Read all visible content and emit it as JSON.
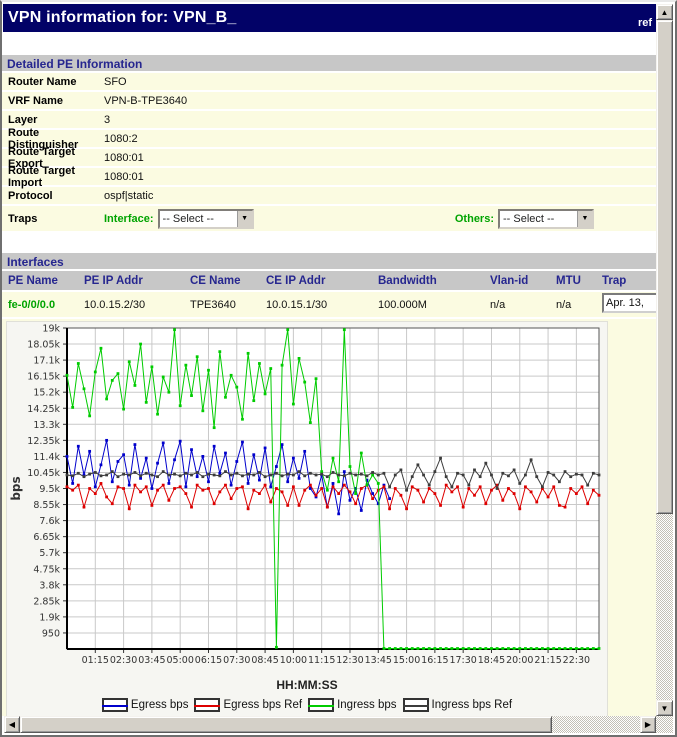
{
  "window": {
    "title": "VPN information for: VPN_B_",
    "title_right": "ref"
  },
  "detailed_pe": {
    "section_title": "Detailed PE Information",
    "rows": [
      {
        "label": "Router Name",
        "value": "SFO"
      },
      {
        "label": "VRF Name",
        "value": "VPN-B-TPE3640"
      },
      {
        "label": "Layer",
        "value": "3"
      },
      {
        "label": "Route Distinguisher",
        "value": "1080:2"
      },
      {
        "label": "Route Target Export",
        "value": "1080:01"
      },
      {
        "label": "Route Target Import",
        "value": "1080:01"
      },
      {
        "label": "Protocol",
        "value": "ospf|static"
      }
    ],
    "traps": {
      "label": "Traps",
      "interface_label": "Interface:",
      "others_label": "Others:",
      "interface_select_value": "-- Select --",
      "others_select_value": "-- Select --"
    }
  },
  "interfaces": {
    "section_title": "Interfaces",
    "columns": [
      "PE Name",
      "PE IP Addr",
      "CE Name",
      "CE IP Addr",
      "Bandwidth",
      "Vlan-id",
      "MTU",
      "Trap"
    ],
    "rows": [
      {
        "pe_name": "fe-0/0/0.0",
        "pe_ip": "10.0.15.2/30",
        "ce_name": "TPE3640",
        "ce_ip": "10.0.15.1/30",
        "bandwidth": "100.000M",
        "vlan": "n/a",
        "mtu": "n/a",
        "trap": "Apr. 13,"
      }
    ]
  },
  "chart_data": {
    "type": "line",
    "title": "",
    "xlabel": "HH:MM:SS",
    "ylabel": "bps",
    "grid": true,
    "legend_position": "bottom",
    "x_start_hour": 0,
    "x_end_hour": 23.5,
    "sample_interval_minutes": 15,
    "x_tick_step_minutes": 75,
    "x_tick_labels": [
      "01:15",
      "02:30",
      "03:45",
      "05:00",
      "06:15",
      "07:30",
      "08:45",
      "10:00",
      "11:15",
      "12:30",
      "13:45",
      "15:00",
      "16:15",
      "17:30",
      "18:45",
      "20:00",
      "21:15",
      "22:30"
    ],
    "y_min": 0,
    "y_max": 19000,
    "y_tick_step": 950,
    "y_tick_labels": [
      "950",
      "1.9k",
      "2.85k",
      "3.8k",
      "4.75k",
      "5.7k",
      "6.65k",
      "7.6k",
      "8.55k",
      "9.5k",
      "10.45k",
      "11.4k",
      "12.35k",
      "13.3k",
      "14.25k",
      "15.2k",
      "16.15k",
      "17.1k",
      "18.05k",
      "19k"
    ],
    "series": [
      {
        "name": "Egress bps",
        "color": "#0000cc",
        "values": [
          11400,
          9800,
          12000,
          10300,
          11700,
          9600,
          10900,
          12350,
          9900,
          11100,
          11500,
          9700,
          12100,
          10100,
          11300,
          9500,
          11000,
          12200,
          9800,
          11200,
          12300,
          9600,
          11800,
          10200,
          11400,
          9900,
          12000,
          10400,
          11600,
          9700,
          11100,
          12250,
          9800,
          11500,
          10000,
          11900,
          9600,
          10800,
          12100,
          9900,
          11300,
          10100,
          11700,
          9500,
          9000,
          10300,
          8400,
          9800,
          8000,
          10500,
          8800,
          9500,
          8200,
          10000,
          9200,
          8600,
          9700,
          8900,
          null,
          null,
          null,
          null,
          null,
          null,
          null,
          null,
          null,
          null,
          null,
          null,
          null,
          null,
          null,
          null,
          null,
          null,
          null,
          null,
          null,
          null,
          null,
          null,
          null,
          null,
          null,
          null,
          null,
          null,
          null,
          null,
          null,
          null,
          null,
          null,
          null
        ]
      },
      {
        "name": "Egress bps Ref",
        "color": "#dd0000",
        "values": [
          9600,
          9400,
          9700,
          8400,
          9500,
          9200,
          9800,
          9000,
          8600,
          9600,
          9500,
          8300,
          9700,
          9300,
          9600,
          8500,
          9400,
          9700,
          8800,
          9500,
          9600,
          9200,
          8400,
          9700,
          9400,
          9500,
          8600,
          9300,
          9700,
          8900,
          9500,
          9600,
          8300,
          9400,
          9200,
          9700,
          8700,
          9500,
          9300,
          8500,
          9600,
          8500,
          9400,
          9700,
          9100,
          9500,
          8400,
          9600,
          9200,
          9700,
          9300,
          8600,
          9500,
          9700,
          8900,
          9400,
          9600,
          8300,
          9500,
          9100,
          8300,
          9600,
          9400,
          8700,
          9500,
          9200,
          8500,
          9700,
          9300,
          9600,
          8400,
          9500,
          9100,
          9600,
          8600,
          9400,
          9700,
          8800,
          9500,
          9200,
          8300,
          9600,
          9300,
          8700,
          9500,
          9000,
          9600,
          8500,
          8400,
          9500,
          9200,
          9600,
          8600,
          9400,
          9100
        ]
      },
      {
        "name": "Ingress bps",
        "color": "#00cc00",
        "values": [
          16200,
          14300,
          16900,
          15400,
          13800,
          16400,
          17800,
          14800,
          15900,
          16300,
          14200,
          17000,
          15600,
          18050,
          14600,
          16700,
          13900,
          16100,
          15200,
          18900,
          14400,
          16800,
          15000,
          17300,
          14100,
          16500,
          13100,
          17600,
          14900,
          16200,
          15500,
          13600,
          17500,
          14700,
          16900,
          15100,
          16600,
          100,
          16800,
          18900,
          14500,
          17200,
          15800,
          13400,
          16000,
          10500,
          9400,
          11300,
          9900,
          18900,
          10800,
          9200,
          11600,
          9700,
          10300,
          9800,
          30,
          30,
          30,
          30,
          30,
          30,
          30,
          30,
          30,
          30,
          30,
          30,
          30,
          30,
          30,
          30,
          30,
          30,
          30,
          30,
          30,
          30,
          30,
          30,
          30,
          30,
          30,
          30,
          30,
          30,
          30,
          30,
          30,
          30,
          30,
          30,
          30,
          30,
          30
        ]
      },
      {
        "name": "Ingress bps Ref",
        "color": "#3c3c3c",
        "values": [
          10300,
          10250,
          10400,
          10200,
          10350,
          10450,
          10250,
          10300,
          10500,
          10200,
          10350,
          10300,
          10450,
          10250,
          10400,
          10300,
          10200,
          10500,
          10300,
          10350,
          10250,
          10400,
          10300,
          10450,
          10200,
          10350,
          10300,
          10250,
          10500,
          10300,
          10400,
          10250,
          10350,
          10300,
          10450,
          10200,
          10300,
          10400,
          10250,
          10350,
          10300,
          10500,
          10250,
          10400,
          10300,
          10350,
          10200,
          10450,
          10300,
          10250,
          10400,
          10300,
          10350,
          10250,
          10450,
          10300,
          10400,
          9600,
          10300,
          10600,
          9400,
          10200,
          10900,
          10300,
          9700,
          10500,
          11300,
          10200,
          9600,
          10400,
          10300,
          9700,
          10600,
          10200,
          11000,
          10300,
          9500,
          10400,
          10250,
          10600,
          9800,
          10300,
          11200,
          10200,
          9600,
          10450,
          10300,
          9900,
          10500,
          10200,
          10350,
          10300,
          9700,
          10400,
          10300
        ]
      }
    ]
  }
}
